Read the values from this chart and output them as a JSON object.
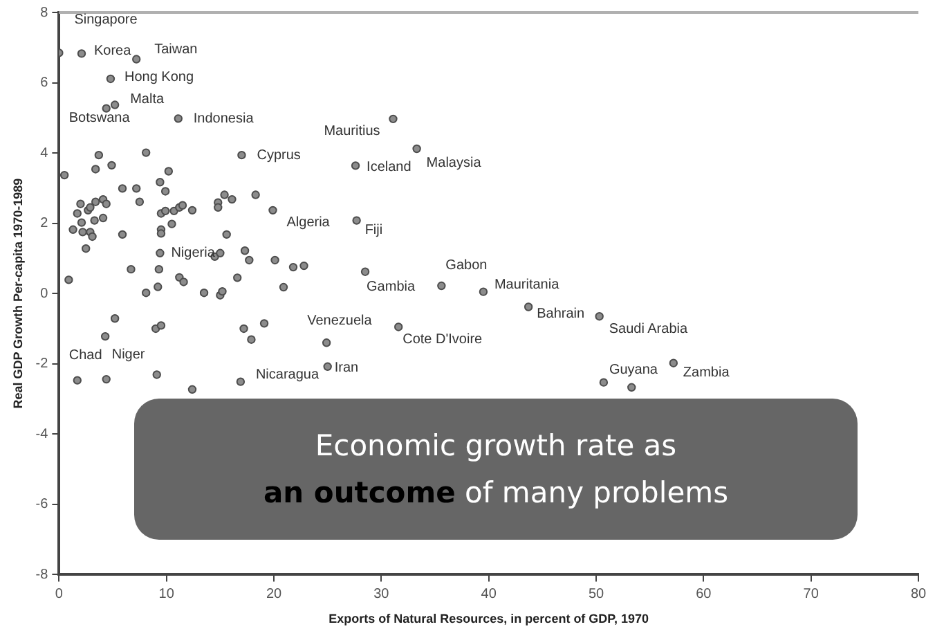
{
  "chart_data": {
    "type": "scatter",
    "xlabel": "Exports of Natural Resources, in percent of GDP, 1970",
    "ylabel": "Real GDP Growth Per-capita 1970-1989",
    "xlim": [
      0,
      80
    ],
    "xticks": [
      0,
      10,
      20,
      30,
      40,
      50,
      60,
      70,
      80
    ],
    "ylim": [
      -8,
      8
    ],
    "yticks": [
      -8,
      -6,
      -4,
      -2,
      0,
      2,
      4,
      6,
      8
    ],
    "grid": false,
    "legend": false,
    "marker": "circle",
    "series": [
      {
        "color": "#8c8c8c",
        "x": [
          0,
          2.1,
          7.2,
          4.8,
          5.2,
          4.4,
          11.1,
          17.0,
          31.1,
          33.3,
          27.6,
          19.9,
          27.7,
          9.4,
          35.6,
          28.5,
          39.5,
          43.7,
          50.3,
          24.9,
          31.6,
          16.9,
          25.0,
          1.7,
          4.4,
          50.7,
          57.2,
          53.3,
          0.5,
          3.7,
          3.4,
          4.9,
          8.1,
          10.2,
          9.4,
          9.9,
          5.9,
          7.2,
          7.5,
          2.0,
          1.7,
          2.7,
          3.4,
          4.1,
          4.4,
          3.3,
          4.1,
          2.1,
          1.3,
          2.2,
          2.9,
          3.1,
          2.5,
          2.9,
          5.9,
          6.7,
          0.9,
          8.1,
          9.2,
          11.2,
          11.6,
          13.5,
          15.0,
          15.2,
          16.6,
          20.9,
          9.5,
          9.9,
          10.7,
          11.2,
          11.5,
          12.4,
          10.5,
          9.5,
          9.5,
          14.5,
          15.0,
          9.3,
          14.8,
          14.8,
          15.4,
          16.1,
          15.6,
          17.3,
          17.7,
          18.3,
          20.1,
          21.8,
          22.8,
          4.3,
          5.2,
          9.1,
          9.0,
          9.5,
          12.4,
          17.2,
          17.9,
          19.1
        ],
        "values": [
          6.85,
          6.83,
          6.67,
          6.11,
          5.37,
          5.27,
          4.98,
          3.94,
          4.97,
          4.12,
          3.64,
          2.37,
          2.08,
          1.15,
          0.22,
          0.62,
          0.05,
          -0.38,
          -0.65,
          -1.4,
          -0.95,
          -2.51,
          -2.08,
          -2.47,
          -2.44,
          -2.53,
          -1.98,
          -2.67,
          3.37,
          3.94,
          3.54,
          3.65,
          4.01,
          3.48,
          3.17,
          2.91,
          2.99,
          2.99,
          2.61,
          2.55,
          2.28,
          2.37,
          2.61,
          2.68,
          2.55,
          2.08,
          2.15,
          2.02,
          1.82,
          1.75,
          1.75,
          1.62,
          1.28,
          2.45,
          1.68,
          0.69,
          0.39,
          0.02,
          0.19,
          0.46,
          0.33,
          0.02,
          -0.05,
          0.06,
          0.45,
          0.18,
          2.28,
          2.35,
          2.35,
          2.45,
          2.51,
          2.37,
          1.98,
          1.82,
          1.71,
          1.05,
          1.15,
          0.69,
          2.59,
          2.45,
          2.81,
          2.68,
          1.68,
          1.22,
          0.95,
          2.81,
          0.95,
          0.75,
          0.79,
          -1.22,
          -0.71,
          -2.31,
          -1.0,
          -0.91,
          -2.73,
          -1.0,
          -1.31,
          -0.85
        ]
      }
    ],
    "annotations": [
      {
        "text": "Singapore",
        "x": 0,
        "y": 6.85
      },
      {
        "text": "Korea",
        "x": 2.1,
        "y": 6.83
      },
      {
        "text": "Taiwan",
        "x": 7.2,
        "y": 6.67
      },
      {
        "text": "Hong Kong",
        "x": 4.8,
        "y": 6.11
      },
      {
        "text": "Malta",
        "x": 5.2,
        "y": 5.37
      },
      {
        "text": "Botswana",
        "x": 4.4,
        "y": 5.27
      },
      {
        "text": "Indonesia",
        "x": 11.1,
        "y": 4.98
      },
      {
        "text": "Cyprus",
        "x": 17.0,
        "y": 3.94
      },
      {
        "text": "Mauritius",
        "x": 31.1,
        "y": 4.97
      },
      {
        "text": "Malaysia",
        "x": 33.3,
        "y": 4.12
      },
      {
        "text": "Iceland",
        "x": 27.6,
        "y": 3.64
      },
      {
        "text": "Algeria",
        "x": 19.9,
        "y": 2.37
      },
      {
        "text": "Fiji",
        "x": 27.7,
        "y": 2.08
      },
      {
        "text": "Nigeria",
        "x": 9.4,
        "y": 1.15
      },
      {
        "text": "Gabon",
        "x": 35.6,
        "y": 0.22
      },
      {
        "text": "Gambia",
        "x": 28.5,
        "y": 0.62
      },
      {
        "text": "Mauritania",
        "x": 39.5,
        "y": 0.05
      },
      {
        "text": "Bahrain",
        "x": 43.7,
        "y": -0.38
      },
      {
        "text": "Saudi Arabia",
        "x": 50.3,
        "y": -0.65
      },
      {
        "text": "Venezuela",
        "x": 24.9,
        "y": -1.4
      },
      {
        "text": "Cote D'Ivoire",
        "x": 31.6,
        "y": -0.95
      },
      {
        "text": "Nicaragua",
        "x": 16.9,
        "y": -2.51
      },
      {
        "text": "Iran",
        "x": 25.0,
        "y": -2.08
      },
      {
        "text": "Chad",
        "x": 1.7,
        "y": -2.47
      },
      {
        "text": "Niger",
        "x": 4.4,
        "y": -2.44
      },
      {
        "text": "Guyana",
        "x": 50.7,
        "y": -2.53
      },
      {
        "text": "Zambia",
        "x": 57.2,
        "y": -1.98
      },
      "Economic growth rate as",
      "an outcome",
      "of many problems"
    ]
  }
}
